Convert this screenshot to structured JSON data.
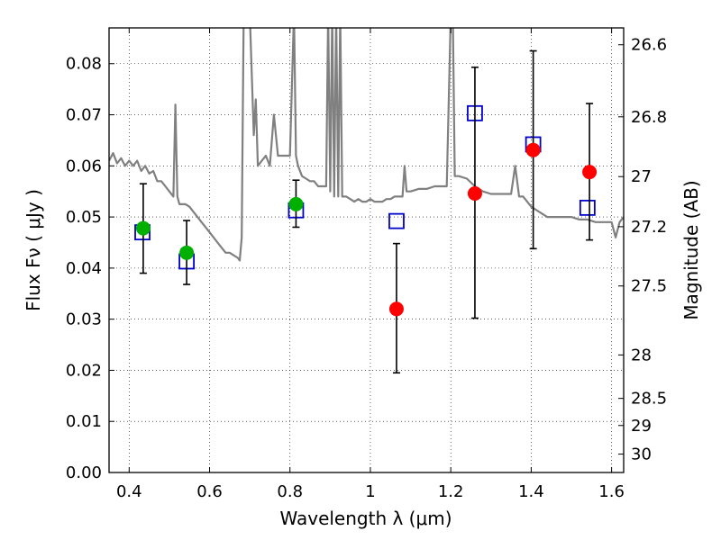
{
  "chart_data": {
    "type": "scatter",
    "xlabel": "Wavelength  λ (μm)",
    "ylabel": "Flux  Fν  ( μJy )",
    "y2label": "Magnitude (AB)",
    "xlim": [
      0.35,
      1.63
    ],
    "ylim": [
      0.0,
      0.087
    ],
    "grid": true,
    "x_ticks": [
      0.4,
      0.6,
      0.8,
      1.0,
      1.2,
      1.4,
      1.6
    ],
    "x_tick_labels": [
      "0.4",
      "0.6",
      "0.8",
      "1",
      "1.2",
      "1.4",
      "1.6"
    ],
    "y_ticks": [
      0.0,
      0.01,
      0.02,
      0.03,
      0.04,
      0.05,
      0.06,
      0.07,
      0.08
    ],
    "y_tick_labels": [
      "0.00",
      "0.01",
      "0.02",
      "0.03",
      "0.04",
      "0.05",
      "0.06",
      "0.07",
      "0.08"
    ],
    "y2_ticks": [
      {
        "label": "26.6",
        "flux": 0.0837
      },
      {
        "label": "26.8",
        "flux": 0.0696
      },
      {
        "label": "27",
        "flux": 0.0579
      },
      {
        "label": "27.2",
        "flux": 0.0481
      },
      {
        "label": "27.5",
        "flux": 0.0365
      },
      {
        "label": "28",
        "flux": 0.023
      },
      {
        "label": "28.5",
        "flux": 0.0145
      },
      {
        "label": "29",
        "flux": 0.0092
      },
      {
        "label": "30",
        "flux": 0.0036
      }
    ],
    "series": [
      {
        "type": "line",
        "color": "#808080",
        "x": [
          0.35,
          0.36,
          0.37,
          0.38,
          0.39,
          0.4,
          0.41,
          0.42,
          0.43,
          0.44,
          0.45,
          0.46,
          0.47,
          0.48,
          0.49,
          0.5,
          0.51,
          0.515,
          0.52,
          0.525,
          0.53,
          0.54,
          0.55,
          0.56,
          0.57,
          0.58,
          0.59,
          0.6,
          0.61,
          0.62,
          0.63,
          0.64,
          0.65,
          0.66,
          0.67,
          0.675,
          0.68,
          0.685,
          0.69,
          0.7,
          0.71,
          0.715,
          0.72,
          0.73,
          0.74,
          0.75,
          0.76,
          0.77,
          0.78,
          0.79,
          0.8,
          0.81,
          0.815,
          0.82,
          0.83,
          0.84,
          0.85,
          0.86,
          0.87,
          0.88,
          0.89,
          0.895,
          0.9,
          0.905,
          0.91,
          0.915,
          0.92,
          0.925,
          0.93,
          0.935,
          0.94,
          0.95,
          0.96,
          0.97,
          0.98,
          0.99,
          1.0,
          1.01,
          1.02,
          1.03,
          1.04,
          1.05,
          1.06,
          1.07,
          1.08,
          1.085,
          1.09,
          1.1,
          1.12,
          1.14,
          1.16,
          1.17,
          1.18,
          1.19,
          1.2,
          1.205,
          1.21,
          1.22,
          1.24,
          1.26,
          1.28,
          1.3,
          1.32,
          1.34,
          1.35,
          1.36,
          1.37,
          1.38,
          1.4,
          1.42,
          1.44,
          1.46,
          1.48,
          1.5,
          1.52,
          1.54,
          1.56,
          1.58,
          1.6,
          1.61,
          1.62,
          1.63
        ],
        "y": [
          0.061,
          0.0625,
          0.0605,
          0.0615,
          0.06,
          0.061,
          0.06,
          0.061,
          0.059,
          0.06,
          0.0585,
          0.059,
          0.057,
          0.057,
          0.056,
          0.055,
          0.054,
          0.072,
          0.054,
          0.0525,
          0.0525,
          0.0525,
          0.052,
          0.051,
          0.05,
          0.049,
          0.048,
          0.047,
          0.046,
          0.045,
          0.044,
          0.043,
          0.043,
          0.0425,
          0.042,
          0.0415,
          0.046,
          0.09,
          0.09,
          0.09,
          0.066,
          0.073,
          0.06,
          0.061,
          0.062,
          0.06,
          0.07,
          0.062,
          0.062,
          0.062,
          0.062,
          0.09,
          0.062,
          0.06,
          0.058,
          0.0575,
          0.057,
          0.057,
          0.056,
          0.056,
          0.056,
          0.09,
          0.055,
          0.09,
          0.054,
          0.09,
          0.054,
          0.09,
          0.054,
          0.054,
          0.054,
          0.0535,
          0.053,
          0.0535,
          0.053,
          0.053,
          0.0535,
          0.053,
          0.053,
          0.053,
          0.0535,
          0.0535,
          0.054,
          0.054,
          0.054,
          0.06,
          0.055,
          0.055,
          0.0555,
          0.0555,
          0.056,
          0.056,
          0.056,
          0.056,
          0.09,
          0.09,
          0.058,
          0.058,
          0.0575,
          0.056,
          0.055,
          0.0545,
          0.0545,
          0.0545,
          0.0545,
          0.06,
          0.054,
          0.054,
          0.052,
          0.051,
          0.05,
          0.05,
          0.05,
          0.05,
          0.0495,
          0.0495,
          0.049,
          0.049,
          0.049,
          0.046,
          0.049,
          0.05
        ]
      },
      {
        "type": "points",
        "marker": "open-square",
        "color": "#0000cc",
        "x": [
          0.433,
          0.543,
          0.815,
          1.065,
          1.26,
          1.405,
          1.54
        ],
        "y": [
          0.047,
          0.0413,
          0.0513,
          0.0492,
          0.0703,
          0.0642,
          0.0518
        ]
      },
      {
        "type": "points",
        "marker": "filled-circle",
        "color": "#00b000",
        "x": [
          0.435,
          0.543,
          0.815
        ],
        "y": [
          0.0478,
          0.043,
          0.0525
        ],
        "err_low": [
          0.039,
          0.0368,
          0.048
        ],
        "err_high": [
          0.0565,
          0.0493,
          0.0572
        ]
      },
      {
        "type": "points",
        "marker": "filled-circle",
        "color": "#ff0000",
        "x": [
          1.065,
          1.26,
          1.405,
          1.545
        ],
        "y": [
          0.032,
          0.0546,
          0.0631,
          0.0588
        ],
        "err_low": [
          0.0195,
          0.0302,
          0.0438,
          0.0455
        ],
        "err_high": [
          0.0448,
          0.0793,
          0.0825,
          0.0722
        ]
      }
    ]
  }
}
